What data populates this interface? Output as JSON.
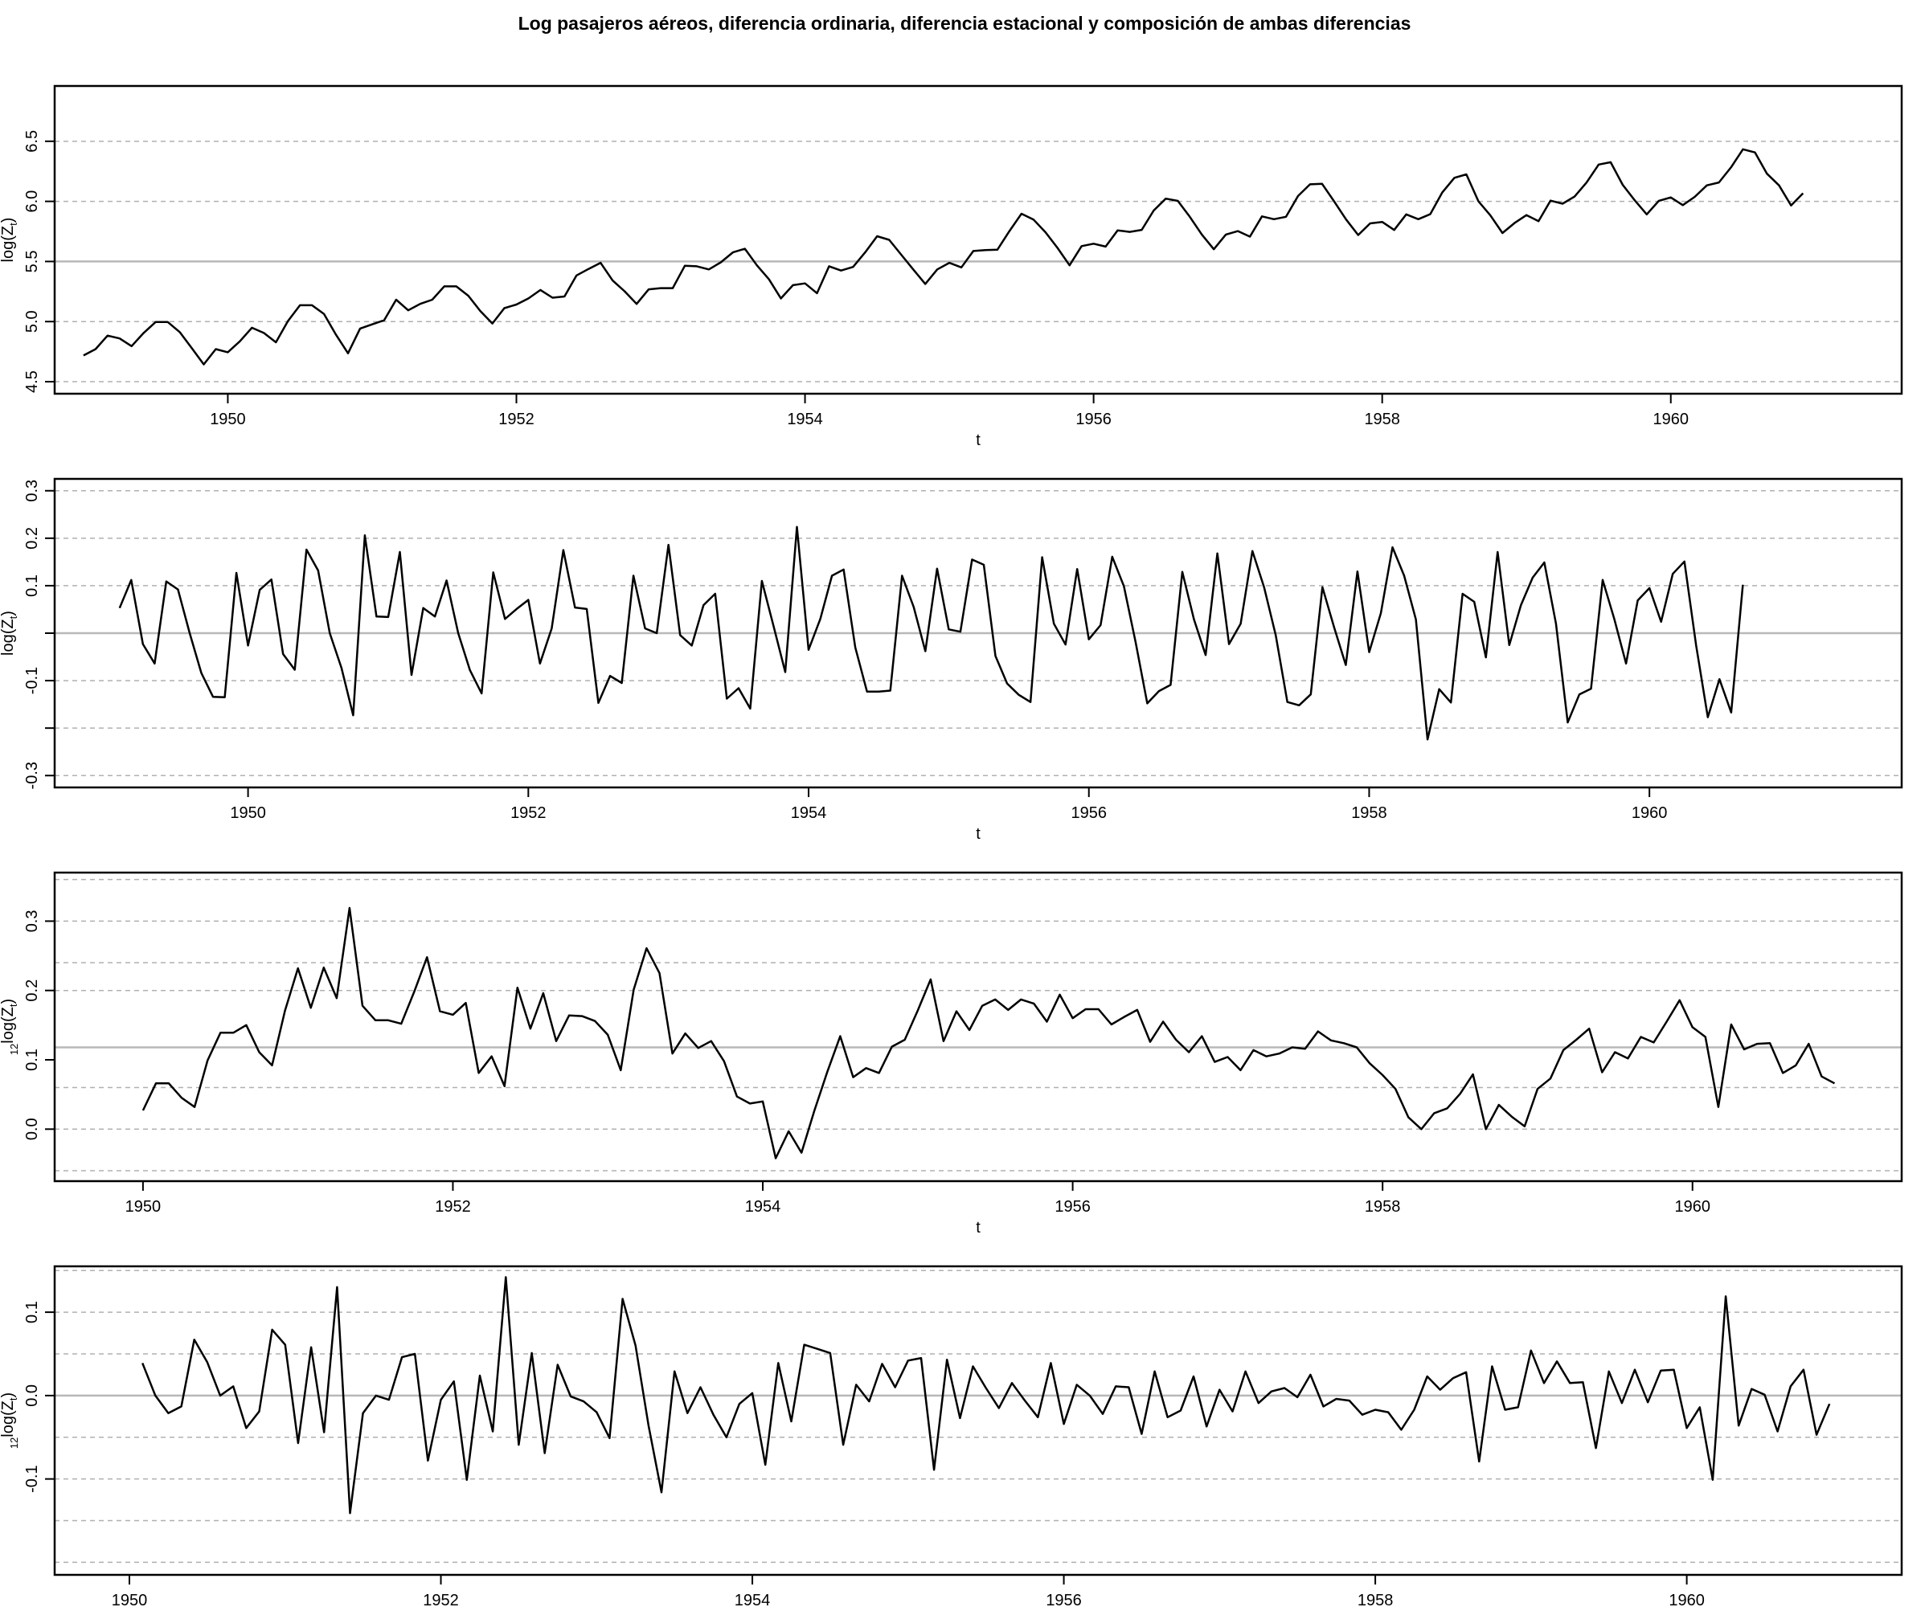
{
  "title": "Log pasajeros aéreos, diferencia ordinaria, diferencia estacional y composición de ambas diferencias",
  "chart_data": [
    {
      "type": "line",
      "xlabel": "t",
      "ylabel": {
        "main": "log(Z",
        "sub": "t",
        "close": ")"
      },
      "x_start": 1949.0,
      "x_step": 0.0833333333,
      "xlim": [
        1948.8,
        1961.6
      ],
      "x_ticks": [
        1950,
        1952,
        1954,
        1956,
        1958,
        1960
      ],
      "ylim": [
        4.4,
        6.96
      ],
      "y_ticks": [
        4.5,
        5.0,
        5.5,
        6.0,
        6.5
      ],
      "y_ticklabels": [
        "4.5",
        "5.0",
        "5.5",
        "6.0",
        "6.5"
      ],
      "center_line": 5.5,
      "grid_lines": [
        4.5,
        5.0,
        5.5,
        6.0,
        6.5,
        7.0
      ],
      "values": [
        4.718,
        4.771,
        4.883,
        4.86,
        4.796,
        4.905,
        4.997,
        4.997,
        4.913,
        4.779,
        4.644,
        4.771,
        4.745,
        4.836,
        4.949,
        4.905,
        4.828,
        5.004,
        5.136,
        5.136,
        5.063,
        4.89,
        4.736,
        4.942,
        4.977,
        5.011,
        5.182,
        5.094,
        5.147,
        5.182,
        5.293,
        5.293,
        5.215,
        5.088,
        4.984,
        5.112,
        5.142,
        5.193,
        5.263,
        5.199,
        5.209,
        5.384,
        5.438,
        5.489,
        5.342,
        5.252,
        5.147,
        5.268,
        5.278,
        5.278,
        5.464,
        5.46,
        5.434,
        5.493,
        5.576,
        5.606,
        5.468,
        5.352,
        5.193,
        5.303,
        5.318,
        5.236,
        5.46,
        5.425,
        5.455,
        5.576,
        5.71,
        5.68,
        5.557,
        5.434,
        5.313,
        5.434,
        5.489,
        5.451,
        5.587,
        5.595,
        5.598,
        5.753,
        5.897,
        5.849,
        5.743,
        5.613,
        5.468,
        5.628,
        5.648,
        5.624,
        5.759,
        5.746,
        5.763,
        5.924,
        6.023,
        6.004,
        5.872,
        5.724,
        5.602,
        5.724,
        5.753,
        5.707,
        5.875,
        5.852,
        5.872,
        6.045,
        6.142,
        6.146,
        6.001,
        5.849,
        5.72,
        5.817,
        5.829,
        5.762,
        5.892,
        5.852,
        5.894,
        6.075,
        6.196,
        6.225,
        6.001,
        5.883,
        5.737,
        5.82,
        5.886,
        5.835,
        6.006,
        5.981,
        6.04,
        6.157,
        6.306,
        6.326,
        6.138,
        6.009,
        5.892,
        6.004,
        6.033,
        5.969,
        6.038,
        6.133,
        6.157,
        6.282,
        6.433,
        6.407,
        6.23,
        6.133,
        5.966,
        6.068
      ]
    },
    {
      "type": "line",
      "xlabel": "t",
      "ylabel": {
        "main": "log(Z",
        "sub": "t",
        "close": ")"
      },
      "x_start": 1949.0833333,
      "x_step": 0.0833333333,
      "xlim": [
        1948.62,
        1961.8
      ],
      "x_ticks": [
        1950,
        1952,
        1954,
        1956,
        1958,
        1960
      ],
      "ylim": [
        -0.325,
        0.325
      ],
      "y_ticks": [
        -0.3,
        -0.1,
        0.1,
        0.3
      ],
      "y_ticklabels": [
        "-0.3",
        "-0.1",
        "0.1",
        "0.3"
      ],
      "y_minor_ticks": [
        -0.2,
        0.0,
        0.2
      ],
      "y_minor_ticklabels": [
        "",
        "",
        "0.2"
      ],
      "center_line": 0.0,
      "grid_lines": [
        -0.3,
        -0.2,
        -0.1,
        0.1,
        0.2,
        0.3
      ],
      "values": [
        0.053,
        0.112,
        -0.023,
        -0.064,
        0.109,
        0.092,
        0.0,
        -0.084,
        -0.134,
        -0.135,
        0.127,
        -0.026,
        0.091,
        0.113,
        -0.044,
        -0.077,
        0.176,
        0.132,
        0.0,
        -0.073,
        -0.173,
        0.206,
        0.035,
        0.034,
        0.171,
        -0.088,
        0.053,
        0.035,
        0.111,
        0.0,
        -0.078,
        -0.127,
        0.128,
        0.03,
        0.051,
        0.07,
        -0.064,
        0.01,
        0.175,
        0.054,
        0.051,
        -0.147,
        -0.09,
        -0.105,
        0.121,
        0.01,
        0.0,
        0.186,
        -0.004,
        -0.026,
        0.059,
        0.083,
        -0.138,
        -0.116,
        -0.159,
        0.11,
        0.015,
        -0.082,
        0.224,
        -0.035,
        0.03,
        0.121,
        0.134,
        -0.03,
        -0.123,
        -0.123,
        -0.121,
        0.121,
        0.055,
        -0.038,
        0.136,
        0.008,
        0.003,
        0.155,
        0.144,
        -0.048,
        -0.106,
        -0.13,
        -0.145,
        0.16,
        0.02,
        -0.024,
        0.135,
        -0.013,
        0.017,
        0.161,
        0.099,
        -0.019,
        -0.148,
        -0.122,
        -0.109,
        0.129,
        0.029,
        -0.046,
        0.168,
        -0.023,
        0.02,
        0.173,
        0.097,
        -0.004,
        -0.145,
        -0.152,
        -0.129,
        0.097,
        0.012,
        -0.067,
        0.13,
        -0.04,
        0.042,
        0.181,
        0.121,
        0.029,
        -0.224,
        -0.118,
        -0.146,
        0.083,
        0.066,
        -0.051,
        0.171,
        -0.025,
        0.059,
        0.117,
        0.149,
        0.02,
        -0.188,
        -0.129,
        -0.117,
        0.112,
        0.029,
        -0.064,
        0.069,
        0.095,
        0.024,
        0.125,
        0.151,
        -0.026,
        -0.177,
        -0.097,
        -0.167,
        0.102
      ]
    },
    {
      "type": "line",
      "xlabel": "t",
      "ylabel": {
        "pre": "12",
        "main": "log(Z",
        "sub": "t",
        "close": ")"
      },
      "x_start": 1950.0,
      "x_step": 0.0833333333,
      "xlim": [
        1949.43,
        1961.35
      ],
      "x_ticks": [
        1950,
        1952,
        1954,
        1956,
        1958,
        1960
      ],
      "ylim": [
        -0.075,
        0.37
      ],
      "y_ticks": [
        0.0,
        0.1,
        0.2,
        0.3
      ],
      "y_ticklabels": [
        "0.0",
        "0.1",
        "0.2",
        "0.3"
      ],
      "center_line": 0.118,
      "grid_lines": [
        -0.06,
        0.0,
        0.06,
        0.2,
        0.24,
        0.3,
        0.36
      ],
      "values": [
        0.027,
        0.066,
        0.066,
        0.045,
        0.032,
        0.099,
        0.139,
        0.139,
        0.15,
        0.111,
        0.092,
        0.171,
        0.232,
        0.175,
        0.233,
        0.189,
        0.319,
        0.178,
        0.157,
        0.157,
        0.152,
        0.198,
        0.248,
        0.17,
        0.165,
        0.182,
        0.081,
        0.105,
        0.062,
        0.204,
        0.145,
        0.196,
        0.127,
        0.164,
        0.163,
        0.156,
        0.136,
        0.085,
        0.201,
        0.261,
        0.225,
        0.109,
        0.138,
        0.117,
        0.127,
        0.098,
        0.047,
        0.037,
        0.04,
        -0.042,
        -0.003,
        -0.034,
        0.027,
        0.083,
        0.134,
        0.075,
        0.088,
        0.081,
        0.119,
        0.129,
        0.171,
        0.216,
        0.127,
        0.17,
        0.143,
        0.178,
        0.187,
        0.172,
        0.187,
        0.181,
        0.155,
        0.194,
        0.16,
        0.173,
        0.173,
        0.151,
        0.162,
        0.172,
        0.126,
        0.155,
        0.129,
        0.111,
        0.134,
        0.097,
        0.104,
        0.085,
        0.114,
        0.105,
        0.109,
        0.118,
        0.116,
        0.141,
        0.128,
        0.124,
        0.118,
        0.095,
        0.078,
        0.058,
        0.017,
        0.0,
        0.023,
        0.03,
        0.051,
        0.079,
        0.0,
        0.035,
        0.018,
        0.004,
        0.058,
        0.073,
        0.114,
        0.129,
        0.145,
        0.082,
        0.111,
        0.102,
        0.133,
        0.125,
        0.155,
        0.186,
        0.147,
        0.133,
        0.032,
        0.151,
        0.115,
        0.123,
        0.124,
        0.081,
        0.092,
        0.123,
        0.076,
        0.066
      ]
    },
    {
      "type": "line",
      "xlabel": "t",
      "ylabel": {
        "pre": "12",
        "main": "log(Z",
        "sub": "t",
        "close": ")"
      },
      "x_start": 1950.0833333,
      "x_step": 0.0833333333,
      "xlim": [
        1949.52,
        1961.38
      ],
      "x_ticks": [
        1950,
        1952,
        1954,
        1956,
        1958,
        1960
      ],
      "ylim": [
        -0.215,
        0.155
      ],
      "y_ticks": [
        -0.1,
        0.0,
        0.1
      ],
      "y_ticklabels": [
        "-0.1",
        "0.0",
        "0.1"
      ],
      "center_line": 0.0,
      "grid_lines": [
        -0.2,
        -0.15,
        -0.1,
        -0.05,
        0.05,
        0.1,
        0.15,
        0.2
      ],
      "values": [
        0.039,
        0.0,
        -0.021,
        -0.013,
        0.067,
        0.04,
        0.0,
        0.011,
        -0.039,
        -0.019,
        0.079,
        0.061,
        -0.057,
        0.058,
        -0.044,
        0.13,
        -0.141,
        -0.021,
        0.0,
        -0.005,
        0.046,
        0.05,
        -0.078,
        -0.005,
        0.017,
        -0.101,
        0.024,
        -0.043,
        0.142,
        -0.059,
        0.051,
        -0.069,
        0.037,
        -0.001,
        -0.007,
        -0.02,
        -0.051,
        0.116,
        0.06,
        -0.036,
        -0.116,
        0.029,
        -0.021,
        0.01,
        -0.023,
        -0.05,
        -0.01,
        0.003,
        -0.083,
        0.039,
        -0.031,
        0.061,
        0.056,
        0.051,
        -0.059,
        0.013,
        -0.007,
        0.038,
        0.01,
        0.042,
        0.045,
        -0.089,
        0.043,
        -0.027,
        0.035,
        0.009,
        -0.015,
        0.015,
        -0.006,
        -0.026,
        0.039,
        -0.034,
        0.013,
        0.0,
        -0.022,
        0.011,
        0.01,
        -0.046,
        0.029,
        -0.026,
        -0.018,
        0.023,
        -0.037,
        0.007,
        -0.019,
        0.029,
        -0.009,
        0.005,
        0.009,
        -0.002,
        0.025,
        -0.013,
        -0.004,
        -0.006,
        -0.023,
        -0.017,
        -0.02,
        -0.041,
        -0.017,
        0.023,
        0.007,
        0.021,
        0.028,
        -0.079,
        0.035,
        -0.017,
        -0.014,
        0.054,
        0.015,
        0.041,
        0.015,
        0.016,
        -0.063,
        0.029,
        -0.009,
        0.031,
        -0.008,
        0.03,
        0.031,
        -0.039,
        -0.014,
        -0.101,
        0.119,
        -0.036,
        0.008,
        0.001,
        -0.043,
        0.011,
        0.031,
        -0.047,
        -0.01
      ]
    }
  ]
}
